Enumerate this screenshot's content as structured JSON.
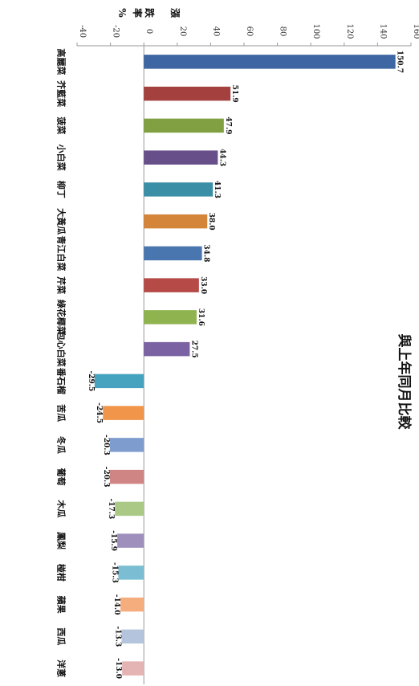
{
  "chart_data": {
    "type": "bar",
    "orientation": "rotated-90-clockwise",
    "title": "與上年同月比較",
    "ylabel": "漲跌率%",
    "ylim": [
      -40,
      160
    ],
    "ticks": [
      -40,
      -20,
      0,
      20,
      40,
      60,
      80,
      100,
      120,
      140,
      160
    ],
    "tick_labels": [
      "-40",
      "-20",
      "0",
      "20",
      "40",
      "60",
      "80",
      "100",
      "120",
      "140",
      "160"
    ],
    "grid": false,
    "categories": [
      "高麗菜",
      "芥藍菜",
      "菠菜",
      "小白菜",
      "柳丁",
      "大黃瓜",
      "青江白菜",
      "芹菜",
      "綠花椰菜",
      "包心白菜",
      "番石榴",
      "苦瓜",
      "冬瓜",
      "葡萄",
      "木瓜",
      "鳳梨",
      "椪柑",
      "蘋果",
      "西瓜",
      "洋蔥"
    ],
    "values": [
      150.7,
      51.9,
      47.9,
      44.3,
      41.3,
      38.0,
      34.8,
      33.0,
      31.6,
      27.5,
      -29.5,
      -24.5,
      -20.3,
      -20.3,
      -17.3,
      -15.9,
      -15.3,
      -14.0,
      -13.3,
      -13.0
    ],
    "value_labels": [
      "150.7",
      "51.9",
      "47.9",
      "44.3",
      "41.3",
      "38.0",
      "34.8",
      "33.0",
      "31.6",
      "27.5",
      "-29.5",
      "-24.5",
      "-20.3",
      "-20.3",
      "-17.3",
      "-15.9",
      "-15.3",
      "-14.0",
      "-13.3",
      "-13.0"
    ],
    "colors": [
      "#3d66a3",
      "#a4403d",
      "#80a041",
      "#67508a",
      "#3a8ea5",
      "#d5853a",
      "#4a76b0",
      "#b54a46",
      "#8fb44f",
      "#7a62a3",
      "#45a3c0",
      "#f0954a",
      "#7f9ccf",
      "#d08585",
      "#aac985",
      "#9e8fbc",
      "#7bbdd2",
      "#f6ad7e",
      "#b4c4dd",
      "#e4b3b3"
    ]
  }
}
